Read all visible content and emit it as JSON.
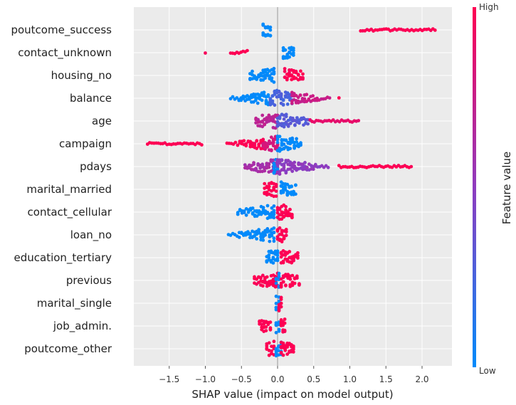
{
  "chart_data": {
    "type": "scatter",
    "subtype": "shap-beeswarm",
    "title": "",
    "xlabel": "SHAP value (impact on model output)",
    "ylabel": "",
    "xlim": [
      -1.98,
      2.42
    ],
    "xticks": [
      -1.5,
      -1.0,
      -0.5,
      0.0,
      0.5,
      1.0,
      1.5,
      2.0
    ],
    "xtick_labels": [
      "−1.5",
      "−1.0",
      "−0.5",
      "0.0",
      "0.5",
      "1.0",
      "1.5",
      "2.0"
    ],
    "grid": true,
    "colorbar": {
      "label": "Feature value",
      "high_label": "High",
      "low_label": "Low",
      "low_color": "#008bfb",
      "mid_color": "#8f3bbf",
      "high_color": "#ff0052"
    },
    "features": [
      {
        "name": "poutcome_success",
        "ranges": [
          {
            "x0": -0.2,
            "x1": -0.1,
            "c": 0
          },
          {
            "x0": 1.15,
            "x1": 2.18,
            "c": 1
          }
        ]
      },
      {
        "name": "contact_unknown",
        "ranges": [
          {
            "x0": -1.0,
            "x1": -1.0,
            "c": 1
          },
          {
            "x0": -0.65,
            "x1": -0.42,
            "c": 1
          },
          {
            "x0": 0.08,
            "x1": 0.22,
            "c": 0
          }
        ]
      },
      {
        "name": "housing_no",
        "ranges": [
          {
            "x0": -0.38,
            "x1": -0.05,
            "c": 0
          },
          {
            "x0": 0.1,
            "x1": 0.35,
            "c": 1
          }
        ]
      },
      {
        "name": "balance",
        "ranges": [
          {
            "x0": -0.65,
            "x1": -0.1,
            "c": 0
          },
          {
            "x0": -0.1,
            "x1": 0.2,
            "c": 0.25
          },
          {
            "x0": 0.2,
            "x1": 0.72,
            "c": 0.75
          },
          {
            "x0": 0.85,
            "x1": 0.85,
            "c": 1
          }
        ]
      },
      {
        "name": "age",
        "ranges": [
          {
            "x0": -0.3,
            "x1": 0.0,
            "c": 0.7
          },
          {
            "x0": 0.0,
            "x1": 0.45,
            "c": 0.3
          },
          {
            "x0": 0.45,
            "x1": 1.12,
            "c": 0.9
          }
        ]
      },
      {
        "name": "campaign",
        "ranges": [
          {
            "x0": -1.8,
            "x1": -1.05,
            "c": 1
          },
          {
            "x0": -0.7,
            "x1": -0.2,
            "c": 1
          },
          {
            "x0": -0.2,
            "x1": 0.0,
            "c": 0.8
          },
          {
            "x0": 0.0,
            "x1": 0.32,
            "c": 0
          }
        ]
      },
      {
        "name": "pdays",
        "ranges": [
          {
            "x0": -0.45,
            "x1": 0.0,
            "c": 0.6
          },
          {
            "x0": -0.05,
            "x1": 0.0,
            "c": 0
          },
          {
            "x0": 0.0,
            "x1": 0.7,
            "c": 0.5
          },
          {
            "x0": 0.85,
            "x1": 1.85,
            "c": 1
          }
        ]
      },
      {
        "name": "marital_married",
        "ranges": [
          {
            "x0": -0.18,
            "x1": -0.02,
            "c": 1
          },
          {
            "x0": 0.05,
            "x1": 0.25,
            "c": 0
          }
        ]
      },
      {
        "name": "contact_cellular",
        "ranges": [
          {
            "x0": -0.55,
            "x1": -0.05,
            "c": 0
          },
          {
            "x0": 0.0,
            "x1": 0.2,
            "c": 1
          }
        ]
      },
      {
        "name": "loan_no",
        "ranges": [
          {
            "x0": -0.68,
            "x1": -0.05,
            "c": 0
          },
          {
            "x0": 0.0,
            "x1": 0.12,
            "c": 1
          }
        ]
      },
      {
        "name": "education_tertiary",
        "ranges": [
          {
            "x0": -0.15,
            "x1": 0.0,
            "c": 0
          },
          {
            "x0": 0.05,
            "x1": 0.28,
            "c": 1
          }
        ]
      },
      {
        "name": "previous",
        "ranges": [
          {
            "x0": -0.32,
            "x1": 0.0,
            "c": 1
          },
          {
            "x0": -0.02,
            "x1": 0.02,
            "c": 0
          },
          {
            "x0": 0.05,
            "x1": 0.3,
            "c": 1
          }
        ]
      },
      {
        "name": "marital_single",
        "ranges": [
          {
            "x0": -0.02,
            "x1": 0.02,
            "c": 0
          },
          {
            "x0": 0.02,
            "x1": 0.05,
            "c": 1
          }
        ]
      },
      {
        "name": "job_admin.",
        "ranges": [
          {
            "x0": -0.25,
            "x1": -0.1,
            "c": 1
          },
          {
            "x0": -0.02,
            "x1": 0.02,
            "c": 0
          },
          {
            "x0": 0.05,
            "x1": 0.1,
            "c": 1
          }
        ]
      },
      {
        "name": "poutcome_other",
        "ranges": [
          {
            "x0": -0.15,
            "x1": -0.05,
            "c": 1
          },
          {
            "x0": -0.02,
            "x1": 0.05,
            "c": 0
          },
          {
            "x0": 0.05,
            "x1": 0.22,
            "c": 1
          }
        ]
      }
    ]
  }
}
